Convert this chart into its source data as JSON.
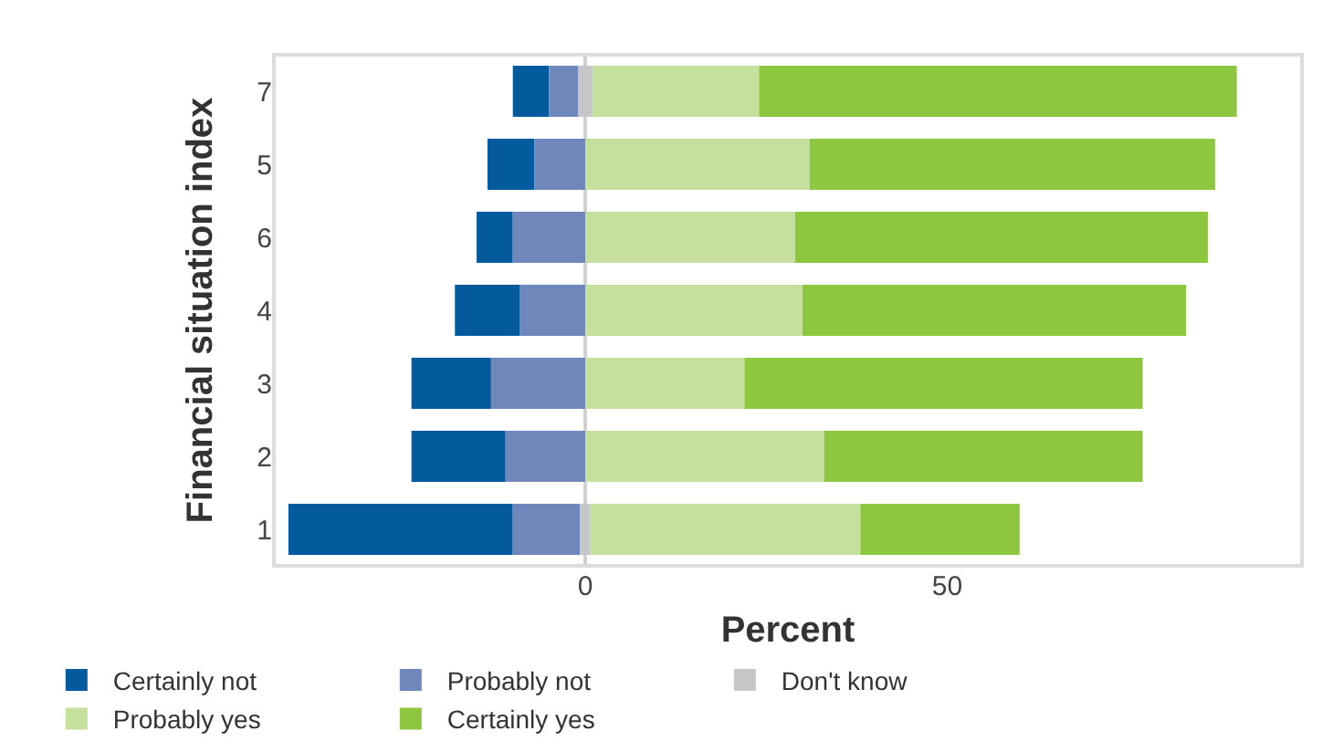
{
  "chart_data": {
    "type": "bar",
    "orientation": "horizontal",
    "xlabel": "Percent",
    "ylabel": "Financial situation index",
    "categories": [
      "7",
      "5",
      "6",
      "4",
      "3",
      "2",
      "1"
    ],
    "series": [
      {
        "name": "Certainly not",
        "color": "#035a9d",
        "base": [
          -10,
          -13.5,
          -15,
          -18,
          -24,
          -24,
          -41
        ],
        "values": [
          5,
          6.5,
          5,
          9,
          11,
          13,
          31
        ]
      },
      {
        "name": "Probably not",
        "color": "#7087bb",
        "base": [
          -5,
          -7,
          -10,
          -9,
          -13,
          -11,
          -10
        ],
        "values": [
          4,
          7,
          10,
          9,
          13,
          11,
          9.3
        ]
      },
      {
        "name": "Don't know",
        "color": "#c5c6c8",
        "base": [
          -1,
          null,
          null,
          null,
          null,
          null,
          -0.7
        ],
        "values": [
          2,
          null,
          null,
          null,
          null,
          null,
          1.4
        ]
      },
      {
        "name": "Probably yes",
        "color": "#c5df9c",
        "base": [
          1,
          0,
          0,
          0,
          0,
          0,
          0.7
        ],
        "values": [
          23,
          31,
          29,
          30,
          22,
          33,
          37.3
        ]
      },
      {
        "name": "Certainly yes",
        "color": "#8dc63f",
        "base": [
          24,
          31,
          29,
          30,
          22,
          33,
          38
        ],
        "values": [
          66,
          56,
          57,
          53,
          55,
          44,
          22
        ]
      }
    ],
    "xlim": [
      -43,
      99
    ],
    "xticks": [
      0,
      50
    ],
    "grid": false,
    "legend": "bottom",
    "ref_lines": [
      {
        "axis": "x",
        "value": 0,
        "color": "#d0d0d0"
      }
    ]
  }
}
